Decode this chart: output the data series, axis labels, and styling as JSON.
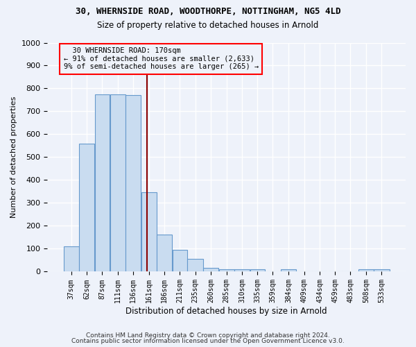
{
  "title1": "30, WHERNSIDE ROAD, WOODTHORPE, NOTTINGHAM, NG5 4LD",
  "title2": "Size of property relative to detached houses in Arnold",
  "xlabel": "Distribution of detached houses by size in Arnold",
  "ylabel": "Number of detached properties",
  "annotation_line1": "  30 WHERNSIDE ROAD: 170sqm  ",
  "annotation_line2": "← 91% of detached houses are smaller (2,633)",
  "annotation_line3": "9% of semi-detached houses are larger (265) →",
  "bar_color": "#c9dcf0",
  "bar_edge_color": "#6699cc",
  "red_line_x": 170,
  "categories": [
    "37sqm",
    "62sqm",
    "87sqm",
    "111sqm",
    "136sqm",
    "161sqm",
    "186sqm",
    "211sqm",
    "235sqm",
    "260sqm",
    "285sqm",
    "310sqm",
    "335sqm",
    "359sqm",
    "384sqm",
    "409sqm",
    "434sqm",
    "459sqm",
    "483sqm",
    "508sqm",
    "533sqm"
  ],
  "bin_edges": [
    37,
    62,
    87,
    111,
    136,
    161,
    186,
    211,
    235,
    260,
    285,
    310,
    335,
    359,
    384,
    409,
    434,
    459,
    483,
    508,
    533,
    558
  ],
  "values": [
    112,
    558,
    775,
    773,
    770,
    347,
    162,
    96,
    55,
    18,
    12,
    12,
    10,
    0,
    10,
    0,
    0,
    0,
    0,
    10,
    10
  ],
  "ylim": [
    0,
    1000
  ],
  "yticks": [
    0,
    100,
    200,
    300,
    400,
    500,
    600,
    700,
    800,
    900,
    1000
  ],
  "footer1": "Contains HM Land Registry data © Crown copyright and database right 2024.",
  "footer2": "Contains public sector information licensed under the Open Government Licence v3.0.",
  "background_color": "#eef2fa",
  "grid_color": "#ffffff"
}
